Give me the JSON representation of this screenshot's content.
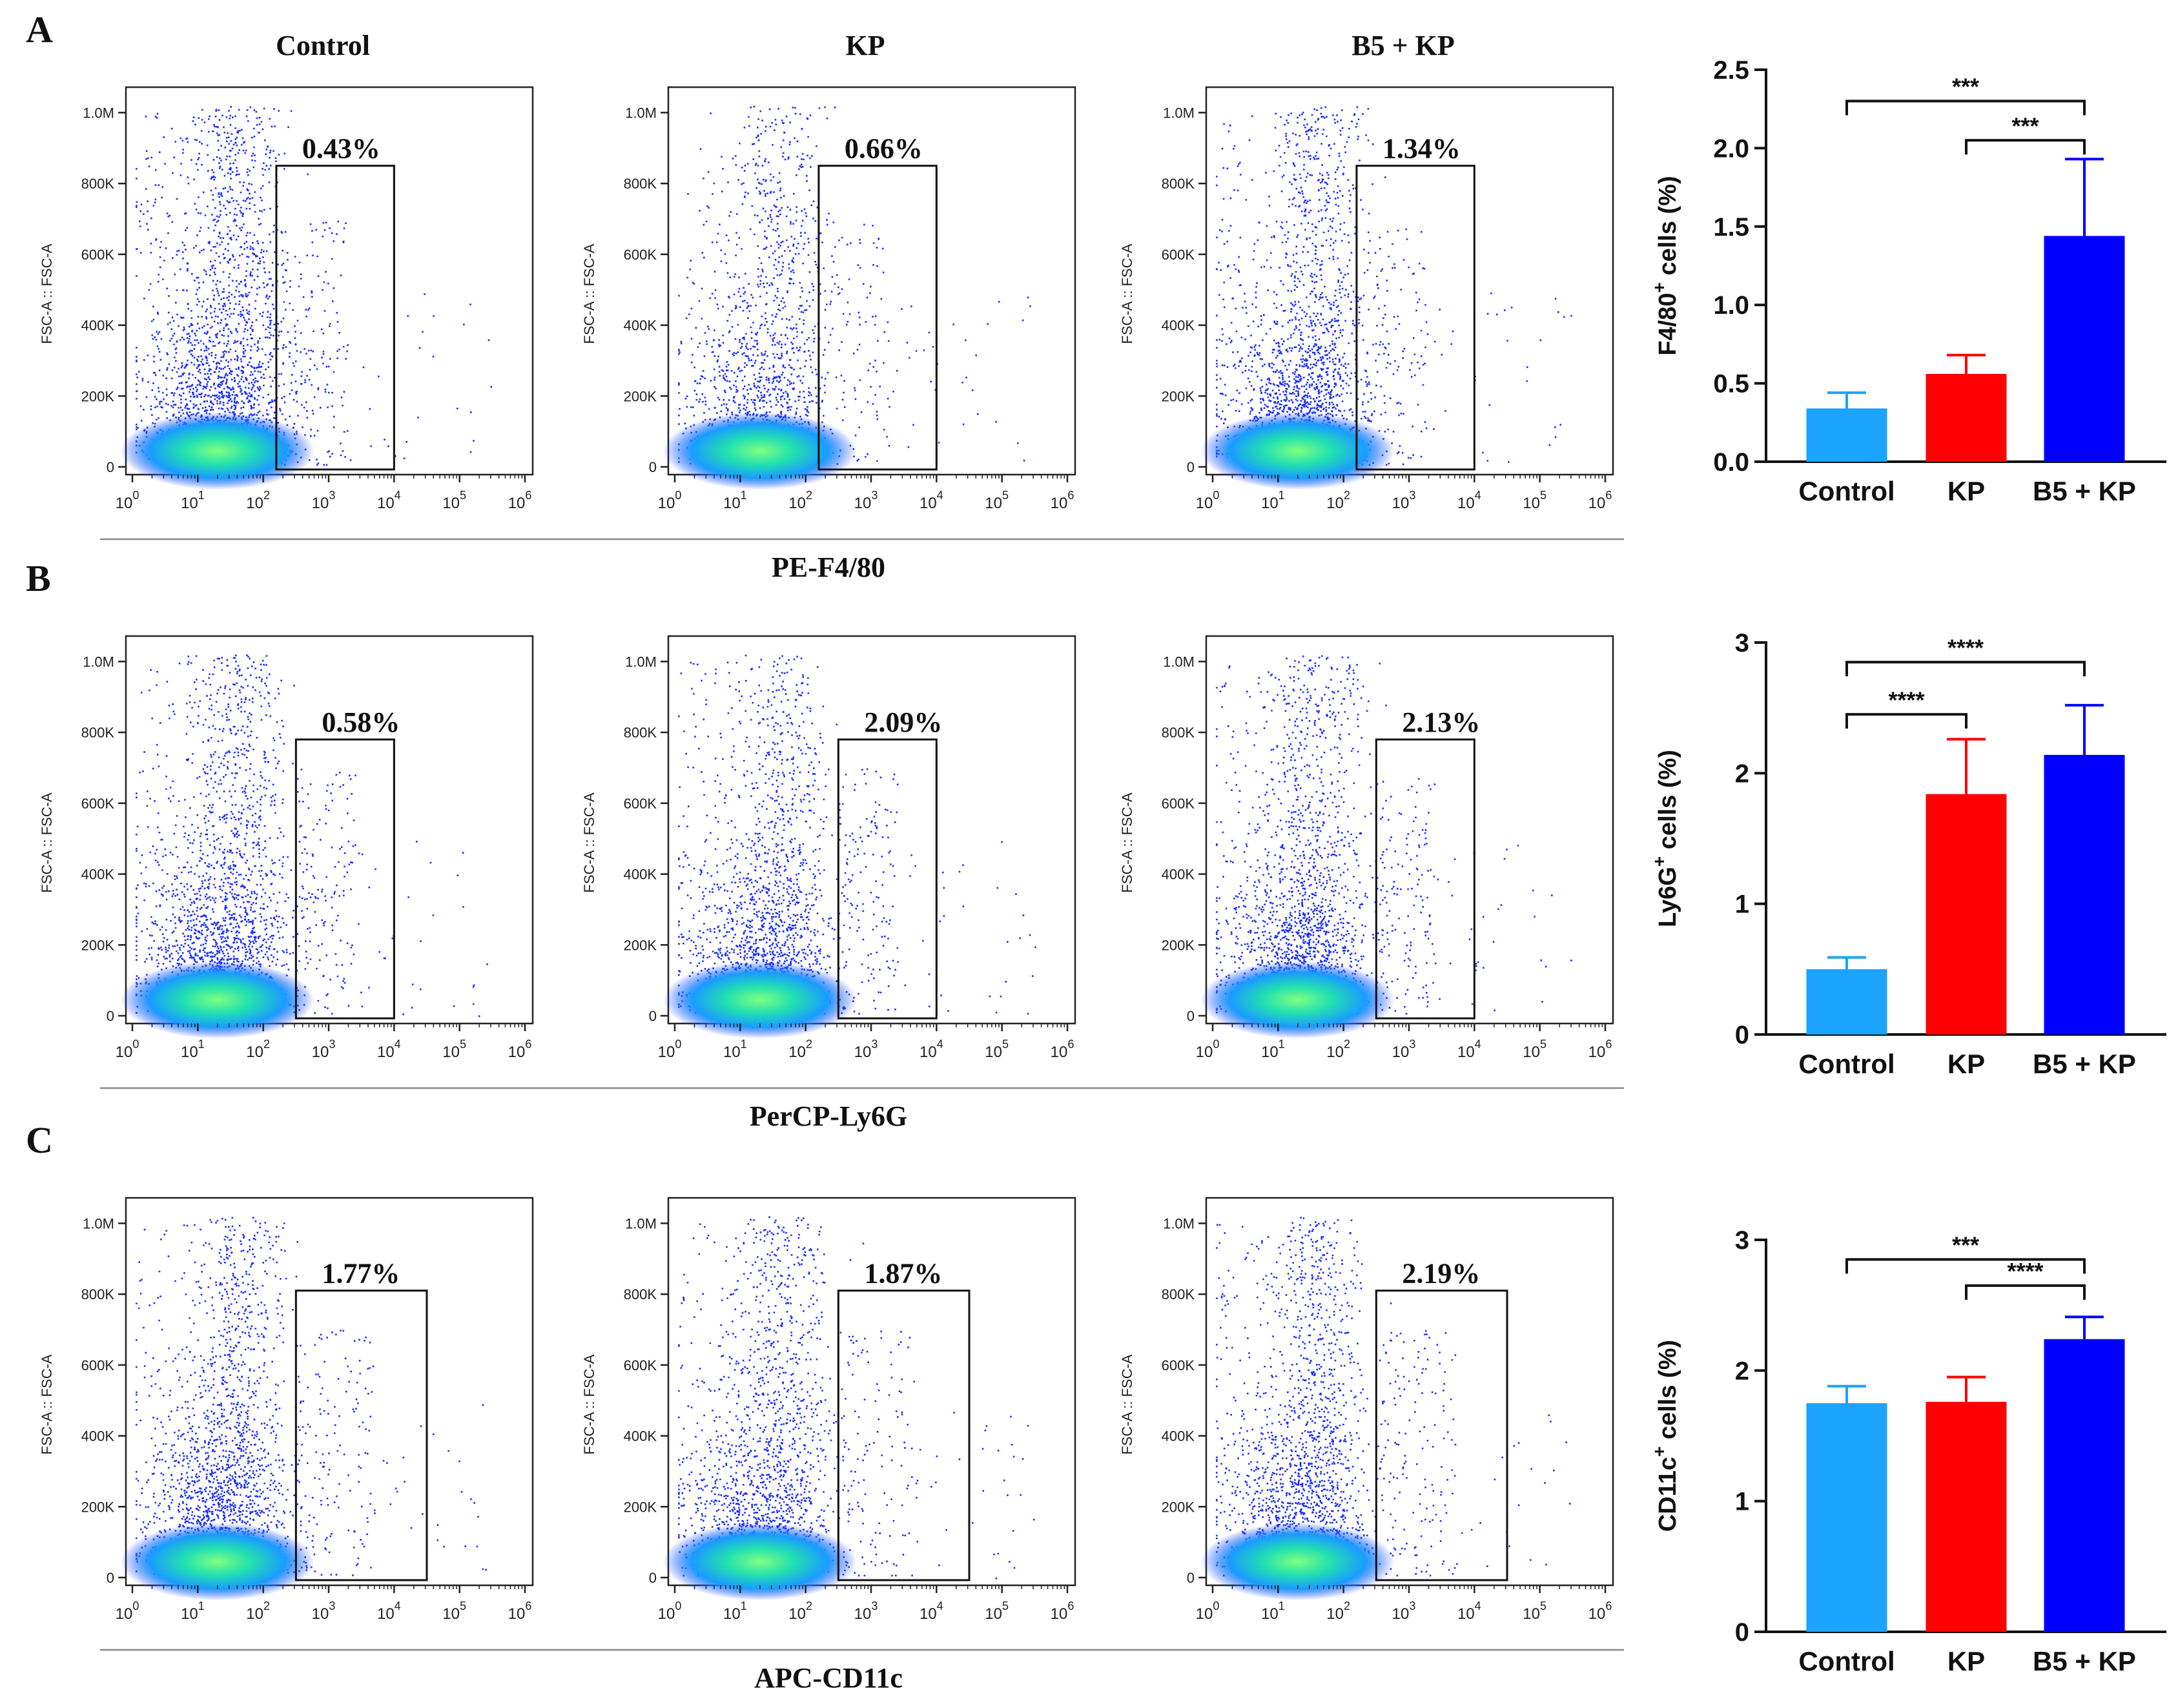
{
  "panels": [
    {
      "letter": "A",
      "marker_label": "PE-F4/80",
      "flow_plots": [
        {
          "group": "Control",
          "gate_percent": "0.43%",
          "density": 0.85
        },
        {
          "group": "KP",
          "gate_percent": "0.66%",
          "density": 0.55
        },
        {
          "group": "B5 + KP",
          "gate_percent": "1.34%",
          "density": 0.75
        }
      ],
      "gate_log_range": [
        2.2,
        4.0
      ],
      "gate_y_top": 850000
    },
    {
      "letter": "B",
      "marker_label": "PerCP-Ly6G",
      "flow_plots": [
        {
          "group": "",
          "gate_percent": "0.58%",
          "density": 0.8
        },
        {
          "group": "",
          "gate_percent": "2.09%",
          "density": 0.7
        },
        {
          "group": "",
          "gate_percent": "2.13%",
          "density": 0.75
        }
      ],
      "gate_log_range": [
        2.5,
        4.0
      ],
      "gate_y_top": 780000
    },
    {
      "letter": "C",
      "marker_label": "APC-CD11c",
      "flow_plots": [
        {
          "group": "",
          "gate_percent": "1.77%",
          "density": 0.8
        },
        {
          "group": "",
          "gate_percent": "1.87%",
          "density": 0.7
        },
        {
          "group": "",
          "gate_percent": "2.19%",
          "density": 0.75
        }
      ],
      "gate_log_range": [
        2.5,
        4.5
      ],
      "gate_y_top": 810000
    }
  ],
  "flow_axes": {
    "ylabel": "FSC-A :: FSC-A",
    "y_ticks": [
      "0",
      "200K",
      "400K",
      "600K",
      "800K",
      "1.0M"
    ],
    "y_tick_values": [
      0,
      200000,
      400000,
      600000,
      800000,
      1000000
    ],
    "x_tick_exponents": [
      "0",
      "1",
      "2",
      "3",
      "4",
      "5",
      "6"
    ],
    "x_tick_base": "10"
  },
  "chart_data": [
    {
      "type": "bar",
      "categories": [
        "Control",
        "KP",
        "B5 + KP"
      ],
      "values": [
        0.34,
        0.56,
        1.44
      ],
      "errors": [
        0.1,
        0.12,
        0.49
      ],
      "colors": [
        "#1aa3ff",
        "#ff0000",
        "#0000ff"
      ],
      "ylabel_main": "F4/80",
      "ylabel_sup": "+",
      "ylabel_rest": " cells (%)",
      "ylim": [
        0,
        2.5
      ],
      "yticks": [
        "0.0",
        "0.5",
        "1.0",
        "1.5",
        "2.0",
        "2.5"
      ],
      "ytick_values": [
        0,
        0.5,
        1.0,
        1.5,
        2.0,
        2.5
      ],
      "significance": [
        {
          "from": 0,
          "to": 2,
          "label": "***",
          "level": 2.3
        },
        {
          "from": 1,
          "to": 2,
          "label": "***",
          "level": 2.05
        }
      ]
    },
    {
      "type": "bar",
      "categories": [
        "Control",
        "KP",
        "B5 + KP"
      ],
      "values": [
        0.5,
        1.84,
        2.14
      ],
      "errors": [
        0.09,
        0.42,
        0.38
      ],
      "colors": [
        "#1aa3ff",
        "#ff0000",
        "#0000ff"
      ],
      "ylabel_main": "Ly6G",
      "ylabel_sup": "+",
      "ylabel_rest": " cells (%)",
      "ylim": [
        0,
        3
      ],
      "yticks": [
        "0",
        "1",
        "2",
        "3"
      ],
      "ytick_values": [
        0,
        1,
        2,
        3
      ],
      "significance": [
        {
          "from": 0,
          "to": 2,
          "label": "****",
          "level": 2.85
        },
        {
          "from": 0,
          "to": 1,
          "label": "****",
          "level": 2.45
        }
      ]
    },
    {
      "type": "bar",
      "categories": [
        "Control",
        "KP",
        "B5 + KP"
      ],
      "values": [
        1.75,
        1.76,
        2.24
      ],
      "errors": [
        0.13,
        0.19,
        0.17
      ],
      "colors": [
        "#1aa3ff",
        "#ff0000",
        "#0000ff"
      ],
      "ylabel_main": "CD11c",
      "ylabel_sup": "+",
      "ylabel_rest": " cells (%)",
      "ylim": [
        0,
        3
      ],
      "yticks": [
        "0",
        "1",
        "2",
        "3"
      ],
      "ytick_values": [
        0,
        1,
        2,
        3
      ],
      "significance": [
        {
          "from": 0,
          "to": 2,
          "label": "***",
          "level": 2.85
        },
        {
          "from": 1,
          "to": 2,
          "label": "****",
          "level": 2.65
        }
      ]
    }
  ]
}
